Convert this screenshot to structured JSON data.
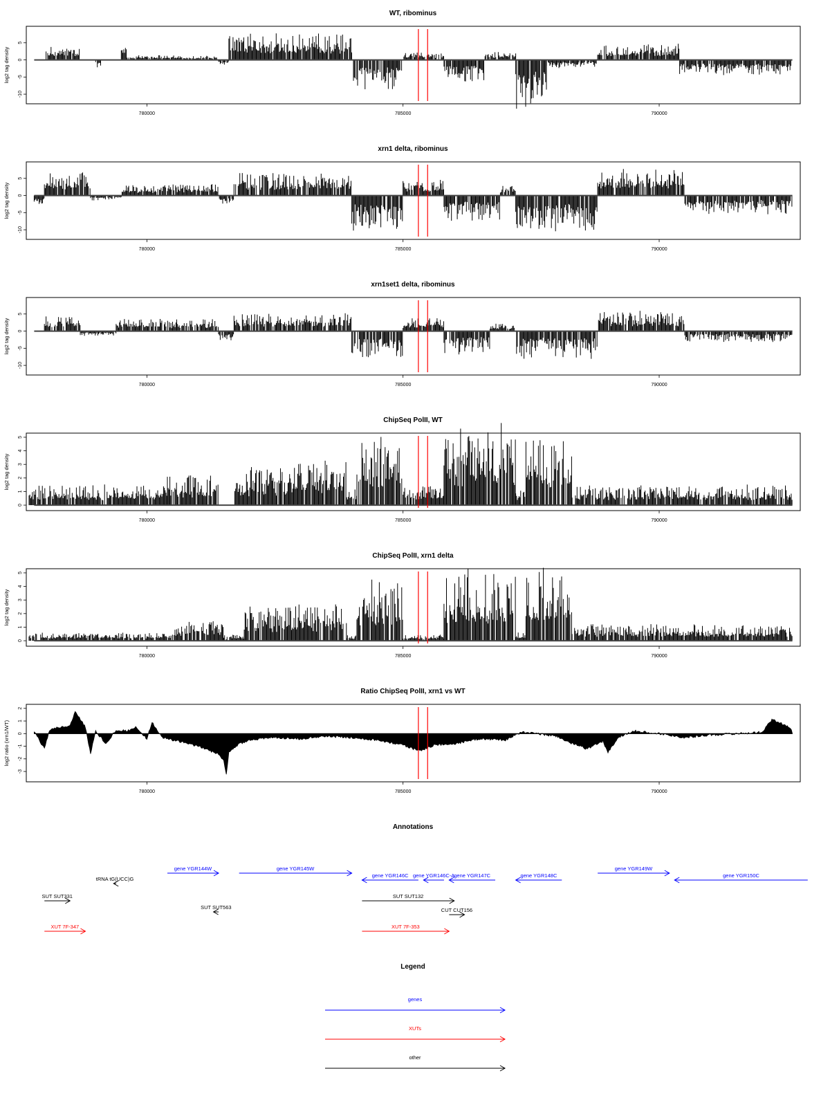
{
  "chart_data": [
    {
      "type": "bar",
      "title": "WT, ribominus",
      "ylabel": "log2 tag density",
      "xlim": [
        777700,
        792700
      ],
      "ylim": [
        -12,
        9
      ],
      "yticks": [
        -10,
        -5,
        0,
        5
      ],
      "ytick_labels": [
        "-10",
        "-5",
        "0",
        "5"
      ],
      "xticks": [
        780000,
        785000,
        790000
      ],
      "xtick_labels": [
        "780000",
        "785000",
        "790000"
      ],
      "grid": false,
      "markers_x": [
        785300,
        785480
      ],
      "marker_color": "#ff0000",
      "segments": [
        {
          "start": 778000,
          "end": 778700,
          "value": 2.5
        },
        {
          "start": 779000,
          "end": 779100,
          "value": -1.5
        },
        {
          "start": 779500,
          "end": 779600,
          "value": 4
        },
        {
          "start": 779600,
          "end": 780600,
          "value": 1
        },
        {
          "start": 780600,
          "end": 781400,
          "value": 0.8
        },
        {
          "start": 781400,
          "end": 781600,
          "value": -1
        },
        {
          "start": 781600,
          "end": 784000,
          "value": 5
        },
        {
          "start": 784000,
          "end": 785000,
          "value": -6
        },
        {
          "start": 785000,
          "end": 785800,
          "value": 1.5
        },
        {
          "start": 785800,
          "end": 786600,
          "value": -4.5
        },
        {
          "start": 786600,
          "end": 787200,
          "value": 1.5
        },
        {
          "start": 787200,
          "end": 787800,
          "value": -9
        },
        {
          "start": 787800,
          "end": 788800,
          "value": -1.5
        },
        {
          "start": 788800,
          "end": 790400,
          "value": 3
        },
        {
          "start": 790400,
          "end": 792600,
          "value": -3
        }
      ]
    },
    {
      "type": "bar",
      "title": "xrn1 delta, ribominus",
      "ylabel": "log2 tag density",
      "xlim": [
        777700,
        792700
      ],
      "ylim": [
        -12,
        9
      ],
      "yticks": [
        -10,
        -5,
        0,
        5
      ],
      "ytick_labels": [
        "-10",
        "-5",
        "0",
        "5"
      ],
      "xticks": [
        780000,
        785000,
        790000
      ],
      "xtick_labels": [
        "780000",
        "785000",
        "790000"
      ],
      "grid": false,
      "markers_x": [
        785300,
        785480
      ],
      "marker_color": "#ff0000",
      "segments": [
        {
          "start": 777800,
          "end": 778000,
          "value": -2
        },
        {
          "start": 778000,
          "end": 778900,
          "value": 5
        },
        {
          "start": 778900,
          "end": 779500,
          "value": -1
        },
        {
          "start": 779500,
          "end": 780300,
          "value": 2
        },
        {
          "start": 780300,
          "end": 781400,
          "value": 2.5
        },
        {
          "start": 781400,
          "end": 781700,
          "value": -2
        },
        {
          "start": 781700,
          "end": 784000,
          "value": 4.5
        },
        {
          "start": 784000,
          "end": 785000,
          "value": -7
        },
        {
          "start": 785000,
          "end": 785800,
          "value": 3
        },
        {
          "start": 785800,
          "end": 786900,
          "value": -5
        },
        {
          "start": 786900,
          "end": 787200,
          "value": 2
        },
        {
          "start": 787200,
          "end": 788800,
          "value": -7
        },
        {
          "start": 788800,
          "end": 790500,
          "value": 5
        },
        {
          "start": 790500,
          "end": 792600,
          "value": -3.5
        }
      ]
    },
    {
      "type": "bar",
      "title": "xrn1set1 delta, ribominus",
      "ylabel": "log2 tag density",
      "xlim": [
        777700,
        792700
      ],
      "ylim": [
        -12,
        9
      ],
      "yticks": [
        -10,
        -5,
        0,
        5
      ],
      "ytick_labels": [
        "-10",
        "-5",
        "0",
        "5"
      ],
      "xticks": [
        780000,
        785000,
        790000
      ],
      "xtick_labels": [
        "780000",
        "785000",
        "790000"
      ],
      "grid": false,
      "markers_x": [
        785300,
        785480
      ],
      "marker_color": "#ff0000",
      "segments": [
        {
          "start": 778000,
          "end": 778700,
          "value": 3
        },
        {
          "start": 778700,
          "end": 779400,
          "value": -1
        },
        {
          "start": 779400,
          "end": 781400,
          "value": 2.5
        },
        {
          "start": 781400,
          "end": 781700,
          "value": -2
        },
        {
          "start": 781700,
          "end": 784000,
          "value": 3.5
        },
        {
          "start": 784000,
          "end": 785000,
          "value": -5.5
        },
        {
          "start": 785000,
          "end": 785800,
          "value": 2.5
        },
        {
          "start": 785800,
          "end": 786700,
          "value": -4.5
        },
        {
          "start": 786700,
          "end": 787200,
          "value": 1.5
        },
        {
          "start": 787200,
          "end": 788800,
          "value": -5.5
        },
        {
          "start": 788800,
          "end": 790500,
          "value": 4
        },
        {
          "start": 790500,
          "end": 792600,
          "value": -2
        }
      ]
    },
    {
      "type": "bar",
      "title": "ChipSeq PolII, WT",
      "ylabel": "log2 tag density",
      "xlim": [
        777700,
        792700
      ],
      "ylim": [
        -0.2,
        5.1
      ],
      "yticks": [
        0,
        1,
        2,
        3,
        4,
        5
      ],
      "ytick_labels": [
        "0",
        "1",
        "2",
        "3",
        "4",
        "5"
      ],
      "xticks": [
        780000,
        785000,
        790000
      ],
      "xtick_labels": [
        "780000",
        "785000",
        "790000"
      ],
      "grid": false,
      "markers_x": [
        785300,
        785480
      ],
      "marker_color": "#ff0000",
      "segments": [
        {
          "start": 777700,
          "end": 780400,
          "value": 1
        },
        {
          "start": 780400,
          "end": 781400,
          "value": 1.5
        },
        {
          "start": 781400,
          "end": 781700,
          "value": 0
        },
        {
          "start": 781700,
          "end": 782800,
          "value": 1.8
        },
        {
          "start": 782800,
          "end": 783900,
          "value": 2.3
        },
        {
          "start": 783900,
          "end": 784100,
          "value": 1
        },
        {
          "start": 784100,
          "end": 785000,
          "value": 3.5
        },
        {
          "start": 785000,
          "end": 785800,
          "value": 1
        },
        {
          "start": 785800,
          "end": 787200,
          "value": 3.8
        },
        {
          "start": 787200,
          "end": 787400,
          "value": 1
        },
        {
          "start": 787400,
          "end": 788300,
          "value": 3.5
        },
        {
          "start": 788300,
          "end": 792600,
          "value": 1
        }
      ]
    },
    {
      "type": "bar",
      "title": "ChipSeq PolII, xrn1 delta",
      "ylabel": "log2 tag density",
      "xlim": [
        777700,
        792700
      ],
      "ylim": [
        -0.2,
        5.1
      ],
      "yticks": [
        0,
        1,
        2,
        3,
        4,
        5
      ],
      "ytick_labels": [
        "0",
        "1",
        "2",
        "3",
        "4",
        "5"
      ],
      "xticks": [
        780000,
        785000,
        790000
      ],
      "xtick_labels": [
        "780000",
        "785000",
        "790000"
      ],
      "grid": false,
      "markers_x": [
        785300,
        785480
      ],
      "marker_color": "#ff0000",
      "segments": [
        {
          "start": 777700,
          "end": 780500,
          "value": 0.4
        },
        {
          "start": 780500,
          "end": 781500,
          "value": 1
        },
        {
          "start": 781500,
          "end": 781900,
          "value": 0.3
        },
        {
          "start": 781900,
          "end": 783100,
          "value": 1.8
        },
        {
          "start": 783100,
          "end": 783900,
          "value": 1.8
        },
        {
          "start": 783900,
          "end": 784100,
          "value": 0.3
        },
        {
          "start": 784100,
          "end": 785000,
          "value": 3
        },
        {
          "start": 785000,
          "end": 785800,
          "value": 0.3
        },
        {
          "start": 785800,
          "end": 787200,
          "value": 3.4
        },
        {
          "start": 787200,
          "end": 787400,
          "value": 0.5
        },
        {
          "start": 787400,
          "end": 788300,
          "value": 3.6
        },
        {
          "start": 788300,
          "end": 792600,
          "value": 0.8
        }
      ]
    },
    {
      "type": "area",
      "title": "Ratio ChipSeq PolII, xrn1 vs WT",
      "ylabel": "log2 ratio (xrn1/WT)",
      "xlim": [
        777700,
        792700
      ],
      "ylim": [
        -3.6,
        2.1
      ],
      "yticks": [
        -3,
        -2,
        -1,
        0,
        1,
        2
      ],
      "ytick_labels": [
        "-3",
        "-2",
        "-1",
        "0",
        "1",
        "2"
      ],
      "xticks": [
        780000,
        785000,
        790000
      ],
      "xtick_labels": [
        "780000",
        "785000",
        "790000"
      ],
      "grid": false,
      "markers_x": [
        785300,
        785480
      ],
      "marker_color": "#ff0000",
      "x": [
        777800,
        778000,
        778100,
        778300,
        778500,
        778600,
        778800,
        778900,
        779000,
        779200,
        779400,
        779600,
        779800,
        780000,
        780100,
        780300,
        780500,
        780800,
        781000,
        781200,
        781400,
        781500,
        781550,
        781600,
        781800,
        782000,
        782500,
        783000,
        783500,
        784000,
        784500,
        785000,
        785200,
        785400,
        785600,
        786000,
        786500,
        787000,
        787300,
        787600,
        788000,
        788300,
        788600,
        788900,
        789000,
        789200,
        789500,
        790000,
        790500,
        791000,
        791500,
        792000,
        792200,
        792500,
        792600
      ],
      "y": [
        0.2,
        -1.2,
        0.3,
        0.5,
        0.6,
        1.8,
        0.5,
        -1.6,
        0.2,
        -0.8,
        0.3,
        0.2,
        0.5,
        -0.4,
        0.9,
        -0.3,
        -0.5,
        -0.8,
        -1.0,
        -1.3,
        -1.6,
        -2.2,
        -3.3,
        -1.5,
        -0.8,
        -0.5,
        -0.3,
        -0.4,
        -0.2,
        -0.3,
        -0.5,
        -0.9,
        -1.2,
        -1.3,
        -0.9,
        -0.8,
        -0.4,
        -0.5,
        0.1,
        0.0,
        -0.2,
        -0.8,
        -1.2,
        -0.6,
        -1.5,
        -0.3,
        0.2,
        0.0,
        -0.3,
        -0.1,
        0.0,
        0.1,
        1.1,
        0.6,
        0.2
      ]
    }
  ],
  "annotations": {
    "title": "Annotations",
    "items": [
      {
        "label": "gene YGR144W",
        "color": "#0000ff",
        "start": 780400,
        "end": 781400,
        "dir": 1,
        "row": 0
      },
      {
        "label": "gene YGR145W",
        "color": "#0000ff",
        "start": 781800,
        "end": 784000,
        "dir": 1,
        "row": 0
      },
      {
        "label": "gene YGR146C",
        "color": "#0000ff",
        "start": 784200,
        "end": 785300,
        "dir": -1,
        "row": 1
      },
      {
        "label": "gene YGR146C-A",
        "color": "#0000ff",
        "start": 785400,
        "end": 785800,
        "dir": -1,
        "row": 1
      },
      {
        "label": "gene YGR147C",
        "color": "#0000ff",
        "start": 785900,
        "end": 786800,
        "dir": -1,
        "row": 1
      },
      {
        "label": "gene YGR148C",
        "color": "#0000ff",
        "start": 787200,
        "end": 788100,
        "dir": -1,
        "row": 1
      },
      {
        "label": "gene YGR149W",
        "color": "#0000ff",
        "start": 788800,
        "end": 790200,
        "dir": 1,
        "row": 0
      },
      {
        "label": "gene YGR150C",
        "color": "#0000ff",
        "start": 790300,
        "end": 792900,
        "dir": -1,
        "row": 1
      },
      {
        "label": "tRNA tG(UCC)G",
        "color": "#000000",
        "start": 779350,
        "end": 779400,
        "dir": -1,
        "row": 2
      },
      {
        "label": "SUT SUT331",
        "color": "#000000",
        "start": 778000,
        "end": 778500,
        "dir": 1,
        "row": 3
      },
      {
        "label": "SUT SUT563",
        "color": "#000000",
        "start": 781300,
        "end": 781400,
        "dir": -1,
        "row": 4
      },
      {
        "label": "SUT SUT132",
        "color": "#000000",
        "start": 784200,
        "end": 786000,
        "dir": 1,
        "row": 3
      },
      {
        "label": "CUT CUT156",
        "color": "#000000",
        "start": 785900,
        "end": 786200,
        "dir": 1,
        "row": 5
      },
      {
        "label": "XUT 7F-347",
        "color": "#ff0000",
        "start": 778000,
        "end": 778800,
        "dir": 1,
        "row": 6
      },
      {
        "label": "XUT 7F-353",
        "color": "#ff0000",
        "start": 784200,
        "end": 785900,
        "dir": 1,
        "row": 6
      }
    ]
  },
  "legend": {
    "title": "Legend",
    "items": [
      {
        "label": "genes",
        "color": "#0000ff"
      },
      {
        "label": "XUTs",
        "color": "#ff0000"
      },
      {
        "label": "other",
        "color": "#000000"
      }
    ]
  }
}
